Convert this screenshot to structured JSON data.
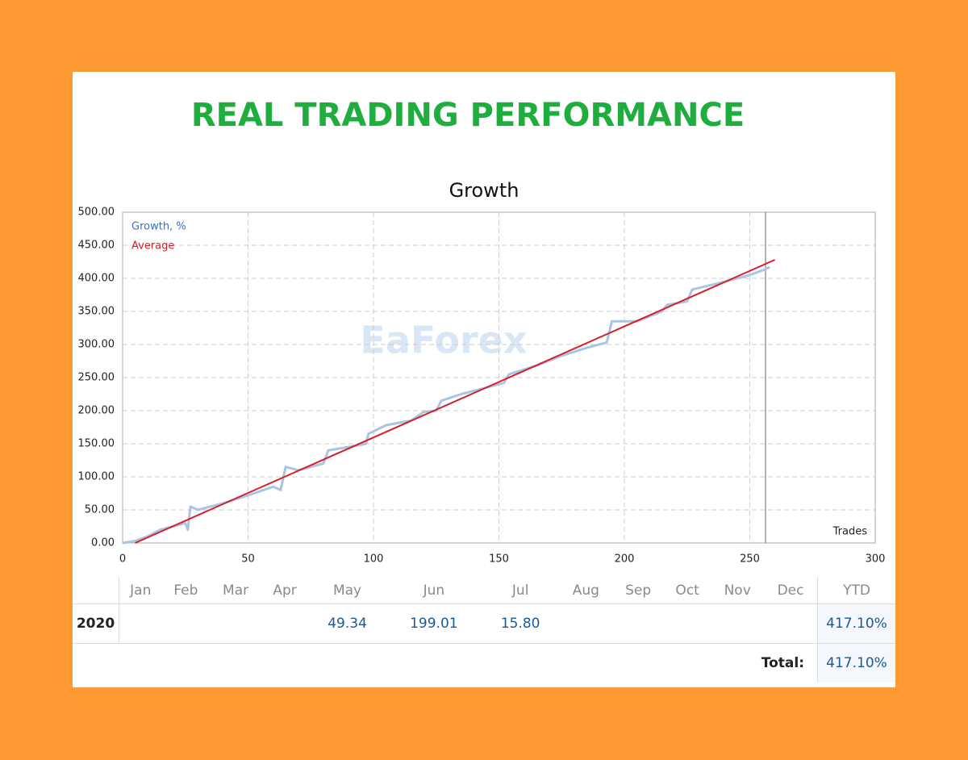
{
  "header": {
    "title": "REAL TRADING PERFORMANCE",
    "watermark": "EaForex"
  },
  "chart_data": {
    "type": "line",
    "title": "Growth",
    "x_label": "Trades",
    "x": [
      0,
      5,
      10,
      15,
      20,
      25,
      26,
      27,
      30,
      40,
      50,
      60,
      63,
      65,
      70,
      80,
      82,
      90,
      97,
      98,
      105,
      115,
      120,
      125,
      127,
      135,
      145,
      152,
      154,
      165,
      175,
      185,
      193,
      195,
      205,
      215,
      217,
      225,
      227,
      240,
      250,
      255,
      258
    ],
    "series": [
      {
        "name": "Growth, %",
        "color": "#a9c5e3",
        "values": [
          0,
          3,
          10,
          20,
          25,
          30,
          20,
          55,
          50,
          60,
          72,
          85,
          80,
          115,
          110,
          120,
          140,
          145,
          150,
          165,
          178,
          185,
          198,
          200,
          215,
          225,
          235,
          242,
          255,
          268,
          283,
          295,
          303,
          335,
          335,
          350,
          360,
          365,
          383,
          395,
          405,
          412,
          417.1
        ]
      },
      {
        "name": "Average",
        "color": "#d4202a",
        "x": [
          5,
          260
        ],
        "values": [
          0,
          428
        ]
      }
    ],
    "xlim": [
      0,
      300
    ],
    "xticks": [
      0,
      50,
      100,
      150,
      200,
      250,
      300
    ],
    "ylim": [
      0,
      500
    ],
    "yticks": [
      {
        "value": 0,
        "label": "0.00"
      },
      {
        "value": 50,
        "label": "50.00"
      },
      {
        "value": 100,
        "label": "100.00"
      },
      {
        "value": 150,
        "label": "150.00"
      },
      {
        "value": 200,
        "label": "200.00"
      },
      {
        "value": 250,
        "label": "250.00"
      },
      {
        "value": 300,
        "label": "300.00"
      },
      {
        "value": 350,
        "label": "350.00"
      },
      {
        "value": 400,
        "label": "400.00"
      },
      {
        "value": 450,
        "label": "450.00"
      },
      {
        "value": 500,
        "label": "500.00"
      }
    ],
    "grid": true,
    "legend": "top-left"
  },
  "table": {
    "columns": [
      "Jan",
      "Feb",
      "Mar",
      "Apr",
      "May",
      "Jun",
      "Jul",
      "Aug",
      "Sep",
      "Oct",
      "Nov",
      "Dec",
      "YTD"
    ],
    "rows": [
      {
        "year": "2020",
        "cells": [
          null,
          null,
          null,
          null,
          "49.34",
          "199.01",
          "15.80",
          null,
          null,
          null,
          null,
          null,
          "417.10%"
        ]
      }
    ],
    "total": {
      "label": "Total:",
      "value": "417.10%"
    }
  }
}
